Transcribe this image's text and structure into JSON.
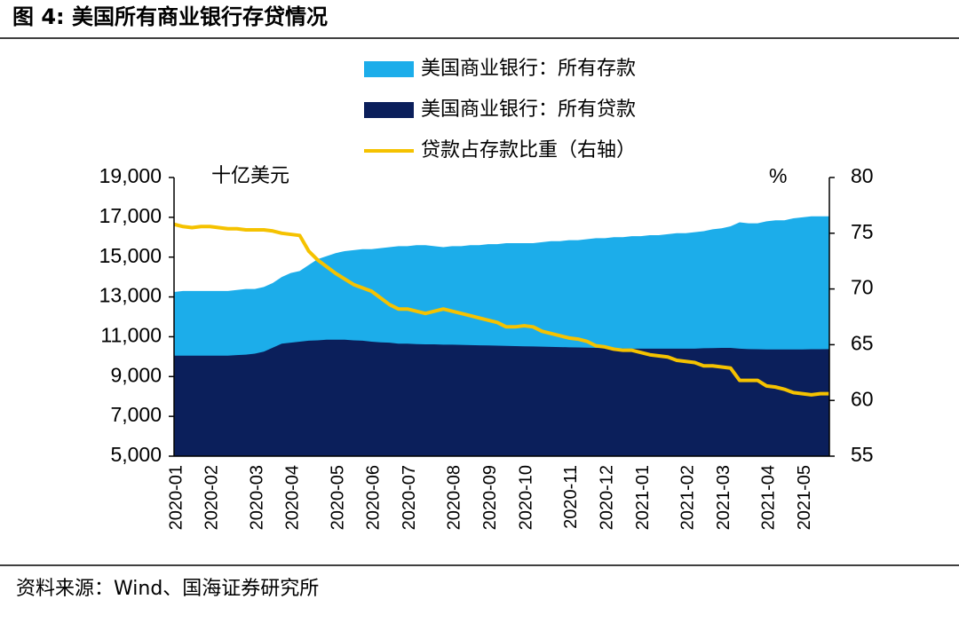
{
  "chart_data": {
    "type": "area_line",
    "title": "图 4:  美国所有商业银行存贷情况",
    "source": "资料来源：Wind、国海证券研究所",
    "y_unit": "十亿美元",
    "y2_unit": "%",
    "categories": [
      "2020-01",
      null,
      null,
      null,
      "2020-02",
      null,
      null,
      null,
      null,
      "2020-03",
      null,
      null,
      null,
      "2020-04",
      null,
      null,
      null,
      null,
      "2020-05",
      null,
      null,
      null,
      "2020-06",
      null,
      null,
      null,
      "2020-07",
      null,
      null,
      null,
      null,
      "2020-08",
      null,
      null,
      null,
      "2020-09",
      null,
      null,
      null,
      "2020-10",
      null,
      null,
      null,
      null,
      "2020-11",
      null,
      null,
      null,
      "2020-12",
      null,
      null,
      null,
      "2021-01",
      null,
      null,
      null,
      null,
      "2021-02",
      null,
      null,
      null,
      "2021-03",
      null,
      null,
      null,
      null,
      "2021-04",
      null,
      null,
      null,
      "2021-05",
      null,
      null,
      null
    ],
    "ylim": [
      5000,
      19000
    ],
    "yticks": [
      {
        "value": 5000,
        "label": "5,000"
      },
      {
        "value": 7000,
        "label": "7,000"
      },
      {
        "value": 9000,
        "label": "9,000"
      },
      {
        "value": 11000,
        "label": "11,000"
      },
      {
        "value": 13000,
        "label": "13,000"
      },
      {
        "value": 15000,
        "label": "15,000"
      },
      {
        "value": 17000,
        "label": "17,000"
      },
      {
        "value": 19000,
        "label": "19,000"
      }
    ],
    "y2lim": [
      55,
      80
    ],
    "y2ticks": [
      55,
      60,
      65,
      70,
      75,
      80
    ],
    "series": [
      {
        "name": "美国商业银行：所有存款",
        "kind": "area",
        "color": "#1cadea",
        "values": [
          13250,
          13300,
          13300,
          13300,
          13300,
          13300,
          13300,
          13350,
          13400,
          13400,
          13500,
          13700,
          14000,
          14200,
          14300,
          14600,
          14900,
          15050,
          15200,
          15300,
          15350,
          15400,
          15400,
          15450,
          15500,
          15550,
          15550,
          15600,
          15600,
          15550,
          15500,
          15550,
          15550,
          15600,
          15600,
          15650,
          15650,
          15700,
          15700,
          15700,
          15700,
          15750,
          15800,
          15800,
          15850,
          15850,
          15900,
          15950,
          15950,
          16000,
          16000,
          16050,
          16050,
          16100,
          16100,
          16150,
          16200,
          16200,
          16250,
          16300,
          16400,
          16450,
          16550,
          16750,
          16700,
          16700,
          16800,
          16850,
          16850,
          16950,
          17000,
          17050,
          17050,
          17050
        ]
      },
      {
        "name": "美国商业银行：所有贷款",
        "kind": "area",
        "color": "#0b1f5b",
        "values": [
          10050,
          10050,
          10050,
          10050,
          10050,
          10050,
          10050,
          10080,
          10100,
          10150,
          10250,
          10450,
          10650,
          10700,
          10750,
          10800,
          10820,
          10850,
          10850,
          10850,
          10820,
          10800,
          10750,
          10720,
          10700,
          10650,
          10650,
          10630,
          10620,
          10620,
          10600,
          10600,
          10590,
          10580,
          10570,
          10560,
          10550,
          10540,
          10530,
          10520,
          10510,
          10500,
          10490,
          10480,
          10470,
          10460,
          10450,
          10440,
          10430,
          10420,
          10410,
          10400,
          10400,
          10400,
          10400,
          10400,
          10400,
          10400,
          10400,
          10420,
          10430,
          10440,
          10440,
          10400,
          10380,
          10370,
          10360,
          10360,
          10360,
          10360,
          10360,
          10370,
          10370,
          10380
        ]
      },
      {
        "name": "贷款占存款比重（右轴）",
        "kind": "line",
        "axis": "y2",
        "color": "#f5c200",
        "values": [
          75.8,
          75.6,
          75.5,
          75.6,
          75.6,
          75.5,
          75.4,
          75.4,
          75.3,
          75.3,
          75.3,
          75.2,
          75.0,
          74.9,
          74.8,
          73.4,
          72.6,
          72.0,
          71.4,
          70.9,
          70.4,
          70.1,
          69.8,
          69.2,
          68.6,
          68.2,
          68.2,
          68.0,
          67.8,
          68.0,
          68.2,
          68.0,
          67.8,
          67.6,
          67.4,
          67.2,
          67.0,
          66.6,
          66.6,
          66.7,
          66.6,
          66.2,
          66.0,
          65.8,
          65.6,
          65.5,
          65.3,
          64.9,
          64.8,
          64.6,
          64.5,
          64.5,
          64.3,
          64.1,
          64.0,
          63.9,
          63.6,
          63.5,
          63.4,
          63.1,
          63.1,
          63.0,
          62.9,
          61.8,
          61.8,
          61.8,
          61.3,
          61.2,
          61.0,
          60.7,
          60.6,
          60.5,
          60.6,
          60.6
        ]
      }
    ]
  }
}
